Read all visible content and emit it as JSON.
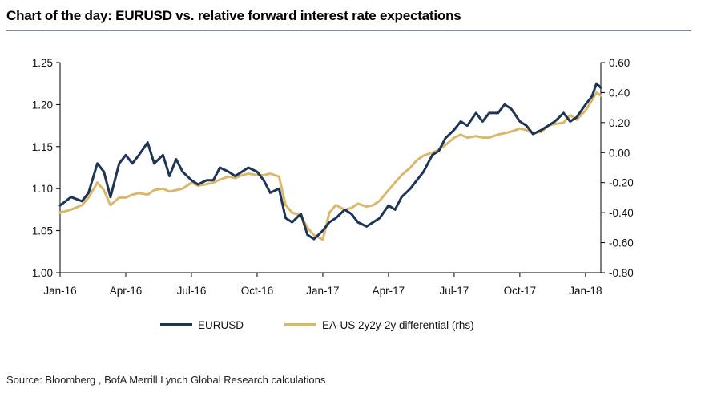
{
  "header": {
    "title": "Chart of the day: EURUSD vs. relative forward interest rate expectations"
  },
  "footer": {
    "source": "Source: Bloomberg , BofA Merrill Lynch Global Research calculations"
  },
  "chart_data": {
    "type": "line",
    "title": "Chart of the day: EURUSD vs. relative forward interest rate expectations",
    "x_ticks": [
      "Jan-16",
      "Apr-16",
      "Jul-16",
      "Oct-16",
      "Jan-17",
      "Apr-17",
      "Jul-17",
      "Oct-17",
      "Jan-18"
    ],
    "x_range_months": [
      0,
      25
    ],
    "y_left": {
      "range": [
        1.0,
        1.25
      ],
      "ticks": [
        "1.00",
        "1.05",
        "1.10",
        "1.15",
        "1.20",
        "1.25"
      ]
    },
    "y_right": {
      "range": [
        -0.8,
        0.6
      ],
      "ticks": [
        "-0.80",
        "-0.60",
        "-0.40",
        "-0.20",
        "0.00",
        "0.20",
        "0.40",
        "0.60"
      ]
    },
    "legend_position": "bottom",
    "series": [
      {
        "name": "EURUSD",
        "axis": "left",
        "color": "#1d3557",
        "x": [
          0,
          0.5,
          1,
          1.3,
          1.7,
          2,
          2.3,
          2.7,
          3,
          3.3,
          3.6,
          4,
          4.3,
          4.7,
          5,
          5.3,
          5.6,
          6,
          6.3,
          6.7,
          7,
          7.3,
          7.7,
          8,
          8.3,
          8.6,
          9,
          9.3,
          9.6,
          10,
          10.3,
          10.6,
          11,
          11.3,
          11.6,
          12,
          12.3,
          12.6,
          13,
          13.3,
          13.6,
          14,
          14.3,
          14.6,
          15,
          15.3,
          15.6,
          16,
          16.3,
          16.6,
          17,
          17.3,
          17.6,
          18,
          18.3,
          18.6,
          19,
          19.3,
          19.6,
          20,
          20.3,
          20.6,
          21,
          21.3,
          21.6,
          22,
          22.3,
          22.6,
          23,
          23.3,
          23.6,
          24,
          24.3,
          24.5,
          24.7
        ],
        "values": [
          1.08,
          1.09,
          1.085,
          1.095,
          1.13,
          1.12,
          1.09,
          1.13,
          1.14,
          1.13,
          1.14,
          1.155,
          1.13,
          1.14,
          1.115,
          1.135,
          1.12,
          1.11,
          1.105,
          1.11,
          1.11,
          1.125,
          1.12,
          1.115,
          1.12,
          1.125,
          1.12,
          1.11,
          1.095,
          1.1,
          1.065,
          1.06,
          1.07,
          1.045,
          1.04,
          1.05,
          1.06,
          1.065,
          1.075,
          1.07,
          1.06,
          1.055,
          1.06,
          1.065,
          1.08,
          1.075,
          1.09,
          1.1,
          1.11,
          1.12,
          1.14,
          1.145,
          1.16,
          1.17,
          1.18,
          1.175,
          1.19,
          1.18,
          1.19,
          1.19,
          1.2,
          1.195,
          1.18,
          1.175,
          1.165,
          1.17,
          1.175,
          1.18,
          1.19,
          1.18,
          1.185,
          1.2,
          1.21,
          1.225,
          1.22
        ]
      },
      {
        "name": "EA-US 2y2y-2y differential (rhs)",
        "axis": "right",
        "color": "#dab86a",
        "x": [
          0,
          0.5,
          1,
          1.3,
          1.7,
          2,
          2.3,
          2.7,
          3,
          3.3,
          3.6,
          4,
          4.3,
          4.7,
          5,
          5.3,
          5.6,
          6,
          6.3,
          6.7,
          7,
          7.3,
          7.7,
          8,
          8.3,
          8.6,
          9,
          9.3,
          9.6,
          10,
          10.3,
          10.6,
          11,
          11.3,
          11.6,
          12,
          12.3,
          12.6,
          13,
          13.3,
          13.6,
          14,
          14.3,
          14.6,
          15,
          15.3,
          15.6,
          16,
          16.3,
          16.6,
          17,
          17.3,
          17.6,
          18,
          18.3,
          18.6,
          19,
          19.3,
          19.6,
          20,
          20.3,
          20.6,
          21,
          21.3,
          21.6,
          22,
          22.3,
          22.6,
          23,
          23.3,
          23.6,
          24,
          24.3,
          24.5,
          24.7
        ],
        "values": [
          -0.4,
          -0.38,
          -0.35,
          -0.3,
          -0.2,
          -0.25,
          -0.35,
          -0.3,
          -0.3,
          -0.28,
          -0.27,
          -0.28,
          -0.25,
          -0.24,
          -0.26,
          -0.25,
          -0.24,
          -0.2,
          -0.22,
          -0.21,
          -0.2,
          -0.18,
          -0.16,
          -0.17,
          -0.15,
          -0.14,
          -0.15,
          -0.15,
          -0.14,
          -0.16,
          -0.35,
          -0.4,
          -0.42,
          -0.5,
          -0.55,
          -0.58,
          -0.4,
          -0.35,
          -0.38,
          -0.37,
          -0.34,
          -0.36,
          -0.35,
          -0.32,
          -0.25,
          -0.2,
          -0.15,
          -0.1,
          -0.05,
          -0.02,
          0.0,
          0.02,
          0.05,
          0.1,
          0.12,
          0.1,
          0.11,
          0.1,
          0.1,
          0.12,
          0.13,
          0.14,
          0.16,
          0.15,
          0.13,
          0.14,
          0.18,
          0.19,
          0.2,
          0.25,
          0.22,
          0.28,
          0.35,
          0.4,
          0.38
        ]
      }
    ]
  }
}
